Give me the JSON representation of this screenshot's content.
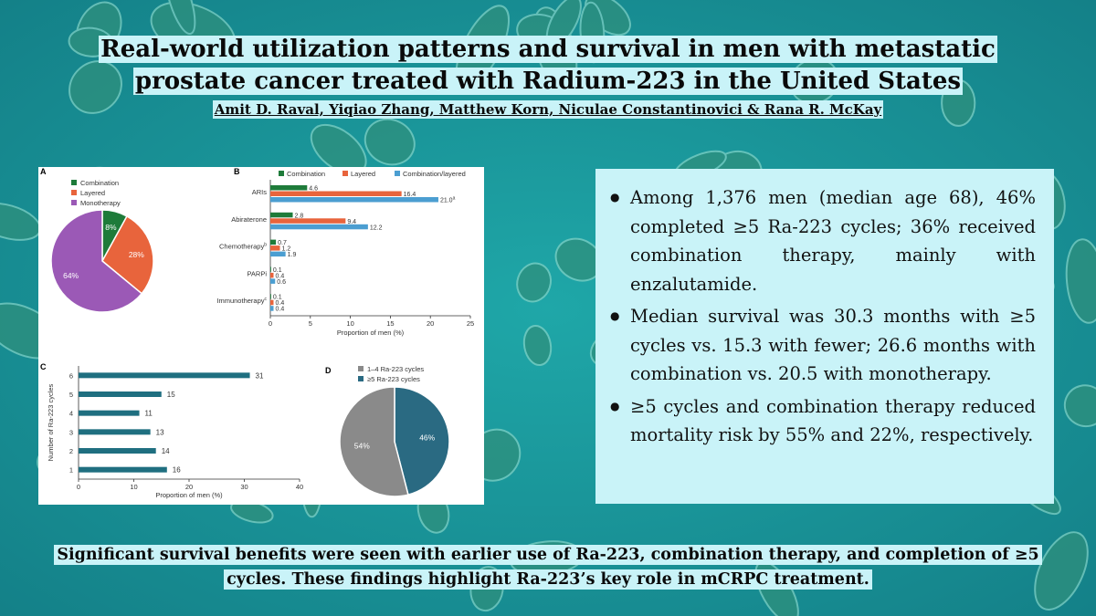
{
  "title": "Real-world utilization patterns and survival in men with metastatic prostate cancer treated with Radium-223 in the United States",
  "authors": "Amit D. Raval, Yiqiao Zhang, Matthew Korn, Niculae Constantinovici & Rana R. McKay",
  "bullets": [
    "Among 1,376 men (median age 68), 46% completed ≥5 Ra-223 cycles; 36% received combination therapy, mainly with enzalutamide.",
    "Median survival was 30.3 months with ≥5 cycles vs. 15.3 with fewer; 26.6 months with combination vs. 20.5 with monotherapy.",
    "≥5 cycles and combination therapy reduced mortality risk by 55% and 22%, respectively."
  ],
  "conclusion": "Significant survival benefits were seen with earlier use of Ra-223, combination therapy, and completion of ≥5 cycles. These findings highlight Ra-223’s key role in mCRPC treatment.",
  "colors": {
    "combination": "#1e7b3a",
    "layered": "#e8643c",
    "combination_layered": "#4b9ed1",
    "monotherapy": "#9b59b6",
    "cycles_bar": "#1f6f80",
    "cycles_1_4": "#8a8a8a",
    "cycles_5plus": "#2a6a82"
  },
  "chart_data": [
    {
      "panel": "A",
      "type": "pie",
      "labels": [
        "Combination",
        "Layered",
        "Monotherapy"
      ],
      "values": [
        8,
        28,
        64
      ],
      "value_labels": [
        "8%",
        "28%",
        "64%"
      ],
      "legend": "top"
    },
    {
      "panel": "B",
      "type": "bar",
      "orientation": "horizontal",
      "categories": [
        "ARIs",
        "Abiraterone",
        "Chemotherapy",
        "PARPi",
        "Immunotherapy"
      ],
      "category_superscripts": [
        "",
        "",
        "b",
        "",
        "c"
      ],
      "series": [
        {
          "name": "Combination",
          "values": [
            4.6,
            2.8,
            0.7,
            0.1,
            0.1
          ],
          "labels": [
            "4.6",
            "2.8",
            "0.7",
            "0.1",
            "0.1"
          ]
        },
        {
          "name": "Layered",
          "values": [
            16.4,
            9.4,
            1.2,
            0.4,
            0.4
          ],
          "labels": [
            "16.4",
            "9.4",
            "1.2",
            "0.4",
            "0.4"
          ]
        },
        {
          "name": "Combination/layered",
          "values": [
            21.0,
            12.2,
            1.9,
            0.6,
            0.4
          ],
          "labels": [
            "21.0",
            "12.2",
            "1.9",
            "0.6",
            "0.4"
          ]
        }
      ],
      "annotations": [
        {
          "series": "Combination/layered",
          "category": "ARIs",
          "superscript": "a"
        }
      ],
      "xlabel": "Proportion of men (%)",
      "xlim": [
        0,
        25
      ],
      "xticks": [
        "0",
        "5",
        "10",
        "15",
        "20",
        "25"
      ],
      "legend": "top"
    },
    {
      "panel": "C",
      "type": "bar",
      "orientation": "horizontal",
      "categories": [
        "6",
        "5",
        "4",
        "3",
        "2",
        "1"
      ],
      "values": [
        31,
        15,
        11,
        13,
        14,
        16
      ],
      "value_labels": [
        "31",
        "15",
        "11",
        "13",
        "14",
        "16"
      ],
      "xlabel": "Proportion of men (%)",
      "ylabel": "Number of Ra-223 cycles",
      "xlim": [
        0,
        40
      ],
      "xticks": [
        "0",
        "10",
        "20",
        "30",
        "40"
      ]
    },
    {
      "panel": "D",
      "type": "pie",
      "labels": [
        "1–4 Ra-223 cycles",
        "≥5 Ra-223 cycles"
      ],
      "values": [
        54,
        46
      ],
      "value_labels": [
        "54%",
        "46%"
      ],
      "legend": "top"
    }
  ]
}
